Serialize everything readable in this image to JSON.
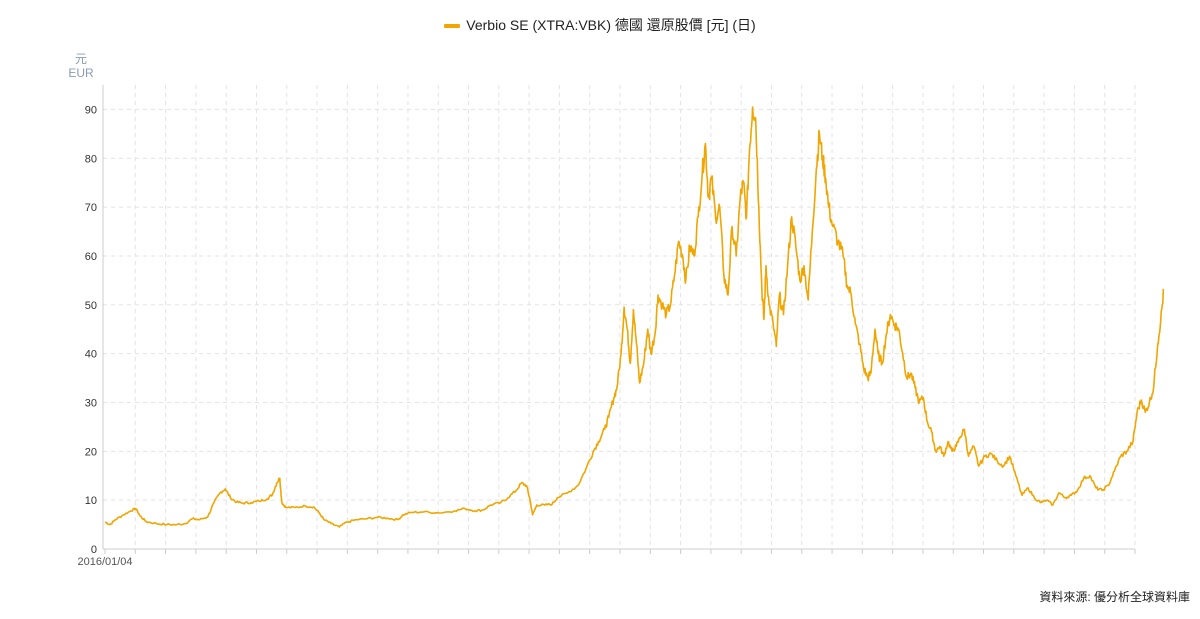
{
  "chart_data": {
    "type": "line",
    "legend_position": "top-center",
    "grid": true,
    "series": [
      {
        "name": "Verbio SE (XTRA:VBK) 德國 還原股價 [元] (日)",
        "color": "#f0a500",
        "points": [
          [
            0.0,
            5.5
          ],
          [
            0.005,
            5.0
          ],
          [
            0.01,
            6.0
          ],
          [
            0.018,
            7.0
          ],
          [
            0.025,
            7.8
          ],
          [
            0.03,
            8.3
          ],
          [
            0.034,
            6.8
          ],
          [
            0.04,
            5.6
          ],
          [
            0.05,
            5.2
          ],
          [
            0.06,
            5.0
          ],
          [
            0.07,
            5.0
          ],
          [
            0.078,
            5.2
          ],
          [
            0.085,
            6.2
          ],
          [
            0.092,
            6.0
          ],
          [
            0.1,
            6.6
          ],
          [
            0.106,
            9.5
          ],
          [
            0.112,
            11.5
          ],
          [
            0.117,
            12.3
          ],
          [
            0.122,
            10.5
          ],
          [
            0.128,
            9.6
          ],
          [
            0.134,
            9.4
          ],
          [
            0.142,
            9.5
          ],
          [
            0.15,
            9.8
          ],
          [
            0.158,
            10.3
          ],
          [
            0.163,
            11.2
          ],
          [
            0.167,
            13.5
          ],
          [
            0.17,
            14.5
          ],
          [
            0.172,
            9.5
          ],
          [
            0.176,
            8.5
          ],
          [
            0.185,
            8.5
          ],
          [
            0.195,
            8.8
          ],
          [
            0.203,
            8.6
          ],
          [
            0.208,
            7.5
          ],
          [
            0.213,
            6.0
          ],
          [
            0.22,
            5.2
          ],
          [
            0.228,
            4.5
          ],
          [
            0.235,
            5.5
          ],
          [
            0.245,
            6.0
          ],
          [
            0.255,
            6.2
          ],
          [
            0.265,
            6.5
          ],
          [
            0.275,
            6.3
          ],
          [
            0.285,
            6.0
          ],
          [
            0.29,
            7.0
          ],
          [
            0.298,
            7.5
          ],
          [
            0.31,
            7.6
          ],
          [
            0.325,
            7.4
          ],
          [
            0.34,
            7.8
          ],
          [
            0.35,
            8.3
          ],
          [
            0.36,
            7.8
          ],
          [
            0.368,
            8.0
          ],
          [
            0.375,
            9.0
          ],
          [
            0.385,
            9.5
          ],
          [
            0.392,
            10.5
          ],
          [
            0.4,
            12.0
          ],
          [
            0.405,
            13.5
          ],
          [
            0.41,
            13.0
          ],
          [
            0.413,
            10.5
          ],
          [
            0.416,
            7.0
          ],
          [
            0.42,
            9.0
          ],
          [
            0.428,
            9.0
          ],
          [
            0.435,
            9.2
          ],
          [
            0.44,
            10.5
          ],
          [
            0.45,
            11.5
          ],
          [
            0.46,
            13.0
          ],
          [
            0.468,
            16.5
          ],
          [
            0.475,
            20.0
          ],
          [
            0.48,
            22.0
          ],
          [
            0.486,
            24.5
          ],
          [
            0.49,
            27.0
          ],
          [
            0.495,
            31.0
          ],
          [
            0.498,
            33.0
          ],
          [
            0.502,
            40.0
          ],
          [
            0.505,
            49.5
          ],
          [
            0.508,
            45.0
          ],
          [
            0.511,
            38.0
          ],
          [
            0.514,
            49.0
          ],
          [
            0.517,
            42.0
          ],
          [
            0.52,
            34.0
          ],
          [
            0.524,
            38.0
          ],
          [
            0.528,
            45.0
          ],
          [
            0.531,
            40.0
          ],
          [
            0.535,
            44.0
          ],
          [
            0.538,
            52.0
          ],
          [
            0.542,
            50.0
          ],
          [
            0.546,
            48.0
          ],
          [
            0.55,
            50.0
          ],
          [
            0.554,
            56.0
          ],
          [
            0.558,
            63.0
          ],
          [
            0.562,
            60.0
          ],
          [
            0.565,
            55.0
          ],
          [
            0.569,
            62.0
          ],
          [
            0.573,
            60.0
          ],
          [
            0.577,
            68.0
          ],
          [
            0.581,
            77.0
          ],
          [
            0.584,
            83.0
          ],
          [
            0.587,
            72.0
          ],
          [
            0.59,
            76.0
          ],
          [
            0.594,
            68.0
          ],
          [
            0.598,
            70.0
          ],
          [
            0.602,
            56.0
          ],
          [
            0.606,
            52.0
          ],
          [
            0.61,
            66.0
          ],
          [
            0.614,
            60.0
          ],
          [
            0.618,
            72.0
          ],
          [
            0.621,
            75.0
          ],
          [
            0.624,
            68.0
          ],
          [
            0.627,
            82.0
          ],
          [
            0.63,
            90.5
          ],
          [
            0.633,
            88.0
          ],
          [
            0.636,
            70.0
          ],
          [
            0.639,
            53.0
          ],
          [
            0.641,
            47.0
          ],
          [
            0.643,
            58.0
          ],
          [
            0.646,
            50.0
          ],
          [
            0.65,
            46.0
          ],
          [
            0.653,
            41.5
          ],
          [
            0.656,
            52.0
          ],
          [
            0.66,
            48.0
          ],
          [
            0.664,
            58.0
          ],
          [
            0.668,
            68.0
          ],
          [
            0.672,
            62.0
          ],
          [
            0.676,
            55.0
          ],
          [
            0.68,
            58.0
          ],
          [
            0.684,
            51.0
          ],
          [
            0.688,
            65.0
          ],
          [
            0.692,
            78.0
          ],
          [
            0.695,
            85.0
          ],
          [
            0.698,
            80.0
          ],
          [
            0.701,
            76.0
          ],
          [
            0.704,
            70.0
          ],
          [
            0.708,
            66.0
          ],
          [
            0.713,
            63.0
          ],
          [
            0.718,
            60.0
          ],
          [
            0.722,
            54.0
          ],
          [
            0.726,
            52.0
          ],
          [
            0.73,
            46.0
          ],
          [
            0.734,
            42.0
          ],
          [
            0.738,
            37.0
          ],
          [
            0.742,
            35.0
          ],
          [
            0.745,
            36.0
          ],
          [
            0.749,
            45.0
          ],
          [
            0.752,
            40.0
          ],
          [
            0.756,
            38.0
          ],
          [
            0.76,
            44.0
          ],
          [
            0.764,
            48.0
          ],
          [
            0.768,
            46.0
          ],
          [
            0.772,
            45.0
          ],
          [
            0.776,
            40.0
          ],
          [
            0.78,
            35.0
          ],
          [
            0.784,
            36.0
          ],
          [
            0.788,
            33.0
          ],
          [
            0.792,
            30.0
          ],
          [
            0.796,
            31.0
          ],
          [
            0.8,
            26.0
          ],
          [
            0.804,
            24.0
          ],
          [
            0.808,
            20.0
          ],
          [
            0.812,
            21.0
          ],
          [
            0.816,
            19.0
          ],
          [
            0.82,
            22.0
          ],
          [
            0.824,
            20.0
          ],
          [
            0.828,
            21.0
          ],
          [
            0.832,
            23.0
          ],
          [
            0.836,
            24.5
          ],
          [
            0.84,
            19.0
          ],
          [
            0.845,
            21.0
          ],
          [
            0.85,
            17.0
          ],
          [
            0.856,
            19.0
          ],
          [
            0.862,
            19.5
          ],
          [
            0.868,
            18.0
          ],
          [
            0.874,
            17.0
          ],
          [
            0.88,
            19.0
          ],
          [
            0.886,
            15.0
          ],
          [
            0.892,
            11.0
          ],
          [
            0.898,
            12.5
          ],
          [
            0.904,
            10.5
          ],
          [
            0.91,
            9.5
          ],
          [
            0.916,
            10.0
          ],
          [
            0.922,
            9.0
          ],
          [
            0.928,
            11.5
          ],
          [
            0.934,
            10.5
          ],
          [
            0.94,
            11.0
          ],
          [
            0.946,
            12.0
          ],
          [
            0.952,
            14.5
          ],
          [
            0.958,
            15.0
          ],
          [
            0.964,
            12.5
          ],
          [
            0.97,
            12.0
          ],
          [
            0.976,
            13.0
          ],
          [
            0.982,
            16.0
          ],
          [
            0.988,
            19.0
          ],
          [
            0.994,
            20.0
          ],
          [
            1.0,
            22.0
          ],
          [
            1.004,
            28.0
          ],
          [
            1.008,
            30.5
          ],
          [
            1.012,
            28.0
          ],
          [
            1.016,
            30.0
          ],
          [
            1.02,
            33.0
          ],
          [
            1.024,
            42.0
          ],
          [
            1.027,
            47.0
          ],
          [
            1.03,
            53.0
          ]
        ]
      }
    ],
    "ylabel": "元",
    "yunit": "EUR",
    "ylim": [
      0,
      95
    ],
    "yticks": [
      0,
      10,
      20,
      30,
      40,
      50,
      60,
      70,
      80,
      90
    ],
    "xtick_labels": [
      "2016/01/04"
    ]
  },
  "source_text": "資料來源: 優分析全球資料庫"
}
